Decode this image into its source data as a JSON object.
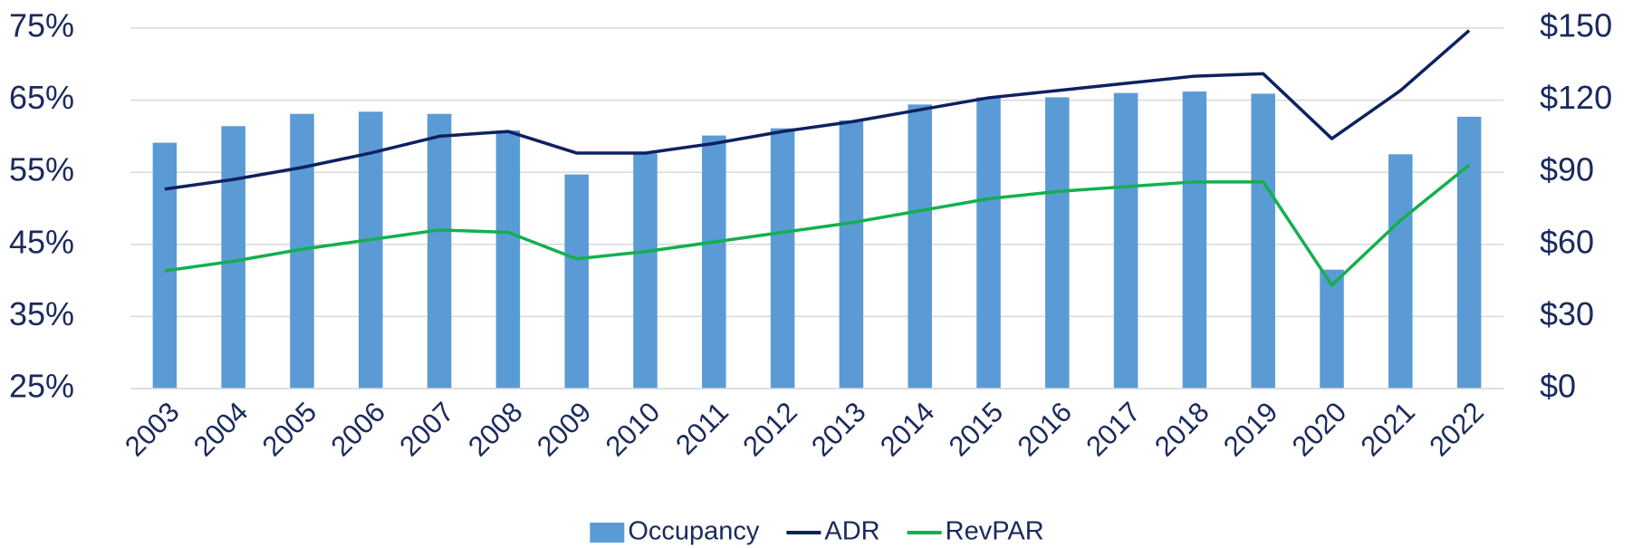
{
  "chart_data": {
    "type": "combo",
    "categories": [
      "2003",
      "2004",
      "2005",
      "2006",
      "2007",
      "2008",
      "2009",
      "2010",
      "2011",
      "2012",
      "2013",
      "2014",
      "2015",
      "2016",
      "2017",
      "2018",
      "2019",
      "2020",
      "2021",
      "2022"
    ],
    "series": [
      {
        "name": "Occupancy",
        "type": "bar",
        "axis": "y",
        "color": "#5b9bd5",
        "values": [
          59.1,
          61.4,
          63.1,
          63.4,
          63.1,
          60.8,
          54.7,
          57.6,
          60.1,
          61.1,
          62.2,
          64.4,
          65.4,
          65.4,
          66.0,
          66.2,
          65.9,
          41.5,
          57.5,
          62.7
        ]
      },
      {
        "name": "ADR",
        "type": "line",
        "axis": "y2",
        "color": "#0e2161",
        "values": [
          83,
          87,
          92,
          98,
          105,
          107,
          98,
          98,
          102,
          107,
          111,
          116,
          121,
          124,
          127,
          130,
          131,
          104,
          124,
          149
        ]
      },
      {
        "name": "RevPAR",
        "type": "line",
        "axis": "y2",
        "color": "#13b04f",
        "values": [
          49,
          53,
          58,
          62,
          66,
          65,
          54,
          57,
          61,
          65,
          69,
          74,
          79,
          82,
          84,
          86,
          86,
          43,
          70,
          93
        ]
      }
    ],
    "ylim": [
      25,
      75
    ],
    "yticks": [
      {
        "value": 25,
        "label": "25%"
      },
      {
        "value": 35,
        "label": "35%"
      },
      {
        "value": 45,
        "label": "45%"
      },
      {
        "value": 55,
        "label": "55%"
      },
      {
        "value": 65,
        "label": "65%"
      },
      {
        "value": 75,
        "label": "75%"
      }
    ],
    "y2lim": [
      0,
      150
    ],
    "y2ticks": [
      {
        "value": 0,
        "label": "$0"
      },
      {
        "value": 30,
        "label": "$30"
      },
      {
        "value": 60,
        "label": "$60"
      },
      {
        "value": 90,
        "label": "$90"
      },
      {
        "value": 120,
        "label": "$120"
      },
      {
        "value": 150,
        "label": "$150"
      }
    ],
    "grid": true,
    "legend": "bottom"
  }
}
